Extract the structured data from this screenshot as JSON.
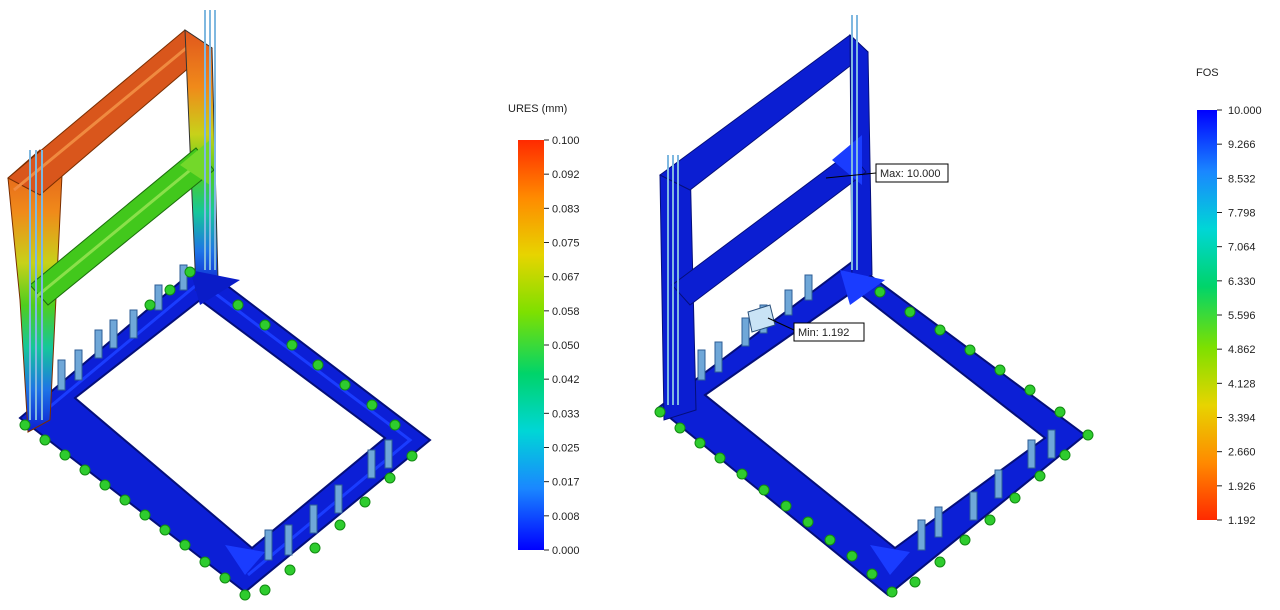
{
  "displacement_plot": {
    "legend_title": "URES (mm)",
    "colorbar": {
      "colors_top_to_bottom": [
        "#ff2a00",
        "#ff8a00",
        "#e7d400",
        "#7ee000",
        "#00d46a",
        "#00d6d6",
        "#1a87ff",
        "#0000ff"
      ],
      "tick_labels": [
        "0.100",
        "0.092",
        "0.083",
        "0.075",
        "0.067",
        "0.058",
        "0.050",
        "0.042",
        "0.033",
        "0.025",
        "0.017",
        "0.008",
        "0.000"
      ]
    }
  },
  "fos_plot": {
    "legend_title": "FOS",
    "colorbar": {
      "colors_top_to_bottom": [
        "#0000ff",
        "#1a87ff",
        "#00d6d6",
        "#00d46a",
        "#7ee000",
        "#e7d400",
        "#ff8a00",
        "#ff2a00"
      ],
      "tick_labels": [
        "10.000",
        "9.266",
        "8.532",
        "7.798",
        "7.064",
        "6.330",
        "5.596",
        "4.862",
        "4.128",
        "3.394",
        "2.660",
        "1.926",
        "1.192"
      ]
    },
    "max_callout": "Max: 10.000",
    "min_callout": "Min: 1.192"
  },
  "colors": {
    "frame_blue": "#0a1cc8",
    "frame_dark": "#050f7a",
    "fixture_green": "#2ecc2e",
    "load_arrow": "#7fb8e0"
  }
}
